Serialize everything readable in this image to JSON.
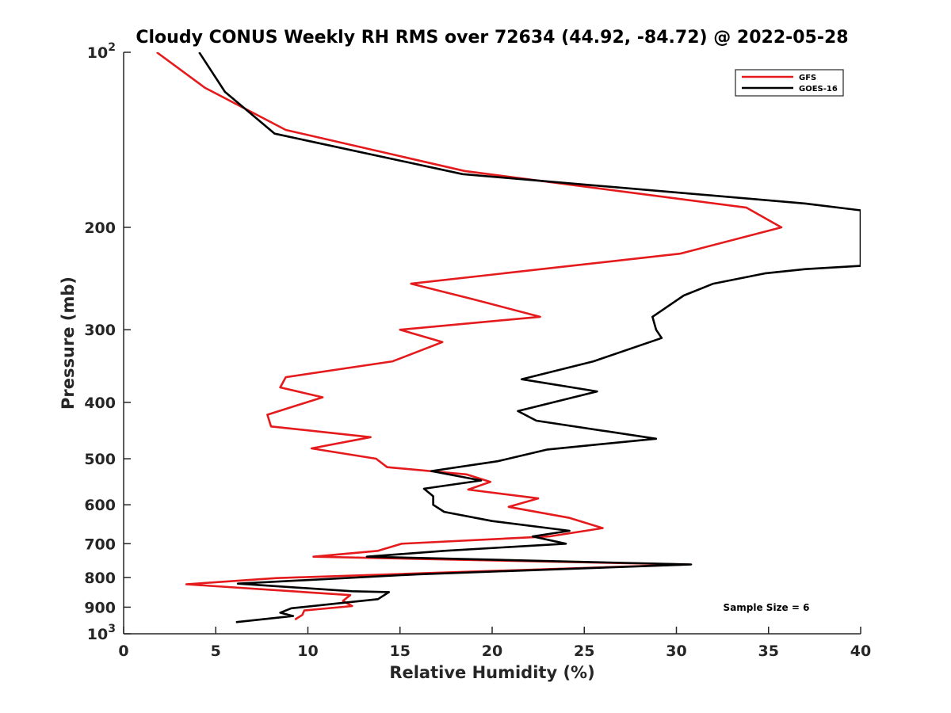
{
  "chart_data": {
    "type": "line",
    "title": "Cloudy CONUS Weekly RH RMS over 72634 (44.92, -84.72) @ 2022-05-28",
    "xlabel": "Relative Humidity (%)",
    "ylabel": "Pressure (mb)",
    "xlim": [
      0,
      40
    ],
    "ylim": [
      100,
      1000
    ],
    "yscale": "log",
    "y_reversed": true,
    "grid": false,
    "legend_position": "top-right",
    "x_ticks": [
      0,
      5,
      10,
      15,
      20,
      25,
      30,
      35,
      40
    ],
    "x_tick_labels": [
      "0",
      "5",
      "10",
      "15",
      "20",
      "25",
      "30",
      "35",
      "40"
    ],
    "y_ticks": [
      100,
      200,
      300,
      400,
      500,
      600,
      700,
      800,
      900,
      1000
    ],
    "y_tick_labels": [
      {
        "base": "10",
        "exp": "2"
      },
      {
        "base": "200",
        "exp": ""
      },
      {
        "base": "300",
        "exp": ""
      },
      {
        "base": "400",
        "exp": ""
      },
      {
        "base": "500",
        "exp": ""
      },
      {
        "base": "600",
        "exp": ""
      },
      {
        "base": "700",
        "exp": ""
      },
      {
        "base": "800",
        "exp": ""
      },
      {
        "base": "900",
        "exp": ""
      },
      {
        "base": "10",
        "exp": "3"
      }
    ],
    "annotation": "Sample Size = 6",
    "series": [
      {
        "name": "GFS",
        "color": "#e41a1c",
        "points": [
          [
            1.8,
            100
          ],
          [
            4.4,
            115
          ],
          [
            8.8,
            136
          ],
          [
            18.5,
            160
          ],
          [
            33.8,
            185
          ],
          [
            35.7,
            200
          ],
          [
            30.2,
            222
          ],
          [
            15.6,
            250
          ],
          [
            18.8,
            265
          ],
          [
            22.6,
            285
          ],
          [
            15.0,
            300
          ],
          [
            17.3,
            315
          ],
          [
            14.6,
            340
          ],
          [
            8.8,
            362
          ],
          [
            8.5,
            377
          ],
          [
            10.8,
            392
          ],
          [
            7.8,
            420
          ],
          [
            8.0,
            440
          ],
          [
            13.4,
            459
          ],
          [
            10.2,
            480
          ],
          [
            13.7,
            500
          ],
          [
            14.3,
            517
          ],
          [
            18.6,
            532
          ],
          [
            19.9,
            548
          ],
          [
            18.7,
            565
          ],
          [
            22.5,
            585
          ],
          [
            20.9,
            605
          ],
          [
            24.2,
            632
          ],
          [
            26.0,
            658
          ],
          [
            23.1,
            680
          ],
          [
            15.1,
            700
          ],
          [
            13.8,
            720
          ],
          [
            10.3,
            737
          ],
          [
            30.7,
            760
          ],
          [
            8.3,
            802
          ],
          [
            3.4,
            822
          ],
          [
            12.3,
            858
          ],
          [
            11.9,
            878
          ],
          [
            12.4,
            896
          ],
          [
            9.8,
            912
          ],
          [
            9.7,
            928
          ],
          [
            9.3,
            945
          ]
        ]
      },
      {
        "name": "GOES-16",
        "color": "#000000",
        "points": [
          [
            4.1,
            100
          ],
          [
            5.5,
            117
          ],
          [
            8.2,
            138
          ],
          [
            18.4,
            162
          ],
          [
            37.0,
            182
          ],
          [
            40.0,
            187
          ],
          [
            40.0,
            233
          ],
          [
            37.0,
            236
          ],
          [
            34.8,
            240
          ],
          [
            32.0,
            250
          ],
          [
            30.4,
            262
          ],
          [
            28.7,
            285
          ],
          [
            28.9,
            300
          ],
          [
            29.2,
            310
          ],
          [
            25.5,
            340
          ],
          [
            21.6,
            365
          ],
          [
            25.7,
            383
          ],
          [
            21.4,
            414
          ],
          [
            22.4,
            430
          ],
          [
            28.9,
            462
          ],
          [
            23.0,
            482
          ],
          [
            20.3,
            505
          ],
          [
            16.7,
            525
          ],
          [
            19.4,
            545
          ],
          [
            16.3,
            563
          ],
          [
            16.8,
            580
          ],
          [
            16.8,
            600
          ],
          [
            17.4,
            617
          ],
          [
            20.0,
            640
          ],
          [
            24.2,
            665
          ],
          [
            22.2,
            680
          ],
          [
            24.0,
            700
          ],
          [
            17.4,
            720
          ],
          [
            13.2,
            737
          ],
          [
            30.8,
            760
          ],
          [
            16.0,
            790
          ],
          [
            6.2,
            820
          ],
          [
            12.4,
            845
          ],
          [
            14.4,
            848
          ],
          [
            13.8,
            872
          ],
          [
            9.1,
            904
          ],
          [
            8.5,
            920
          ],
          [
            9.2,
            932
          ],
          [
            6.1,
            955
          ]
        ]
      }
    ]
  }
}
